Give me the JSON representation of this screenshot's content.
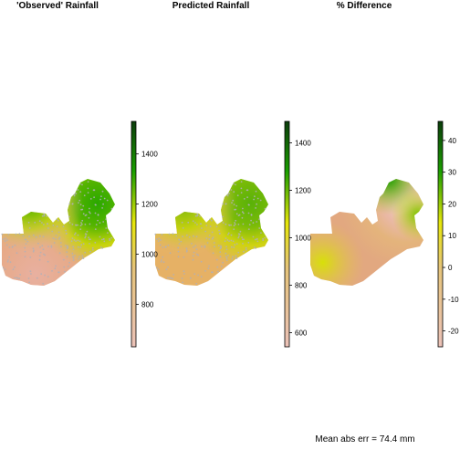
{
  "chart_data": [
    {
      "type": "heatmap",
      "title": "'Observed' Rainfall",
      "legend": {
        "ticks": [
          800,
          1000,
          1200,
          1400
        ],
        "range": [
          630,
          1530
        ],
        "placement": "right"
      },
      "observation_points": true,
      "colors": {
        "low": "#ebc2b8",
        "mid": "#e6e60a",
        "high": "#1a9e00",
        "top": "#0b3d0b"
      }
    },
    {
      "type": "heatmap",
      "title": "Predicted Rainfall",
      "legend": {
        "ticks": [
          600,
          800,
          1000,
          1200,
          1400
        ],
        "range": [
          540,
          1490
        ],
        "placement": "right"
      },
      "observation_points": true,
      "colors": {
        "low": "#ebc2b8",
        "mid": "#e6e60a",
        "high": "#1a9e00",
        "top": "#0b3d0b"
      }
    },
    {
      "type": "heatmap",
      "title": "% Difference",
      "legend": {
        "ticks": [
          -20,
          -10,
          0,
          10,
          20,
          30,
          40
        ],
        "range": [
          -25,
          46
        ],
        "placement": "right"
      },
      "observation_points": false,
      "colors": {
        "low": "#ebc2b8",
        "mid": "#e6e60a",
        "high": "#1a9e00",
        "top": "#0b3d0b"
      }
    }
  ],
  "footer": {
    "text": "Mean abs err = 74.4 mm"
  }
}
